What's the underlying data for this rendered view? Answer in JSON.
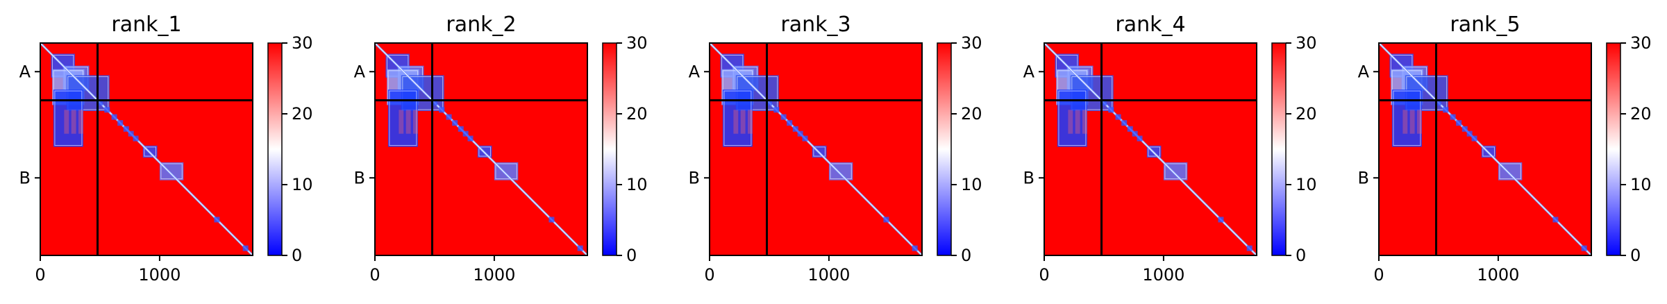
{
  "chart_data": [
    {
      "type": "heatmap",
      "title": "rank_1",
      "chains": [
        {
          "label": "A",
          "start": 0,
          "end": 480
        },
        {
          "label": "B",
          "start": 480,
          "end": 1780
        }
      ],
      "x_ticks": [
        0,
        1000
      ],
      "xlim": [
        0,
        1780
      ],
      "colorbar": {
        "min": 0,
        "max": 30,
        "ticks": [
          0,
          10,
          20,
          30
        ],
        "colormap": "bwr"
      },
      "low_error_blocks": [
        [
          90,
          90,
          200,
          200
        ],
        [
          190,
          190,
          220,
          210
        ],
        [
          100,
          220,
          270,
          300
        ],
        [
          220,
          270,
          360,
          300
        ],
        [
          110,
          390,
          250,
          480
        ],
        [
          860,
          860,
          120,
          100
        ],
        [
          1000,
          1000,
          200,
          150
        ]
      ],
      "diagonal_features": [
        500,
        560,
        620,
        670,
        720,
        760,
        800,
        1480,
        1720
      ]
    },
    {
      "type": "heatmap",
      "title": "rank_2",
      "chains": [
        {
          "label": "A",
          "start": 0,
          "end": 480
        },
        {
          "label": "B",
          "start": 480,
          "end": 1780
        }
      ],
      "x_ticks": [
        0,
        1000
      ],
      "xlim": [
        0,
        1780
      ],
      "colorbar": {
        "min": 0,
        "max": 30,
        "ticks": [
          0,
          10,
          20,
          30
        ],
        "colormap": "bwr"
      },
      "low_error_blocks": [
        [
          90,
          90,
          200,
          200
        ],
        [
          190,
          190,
          220,
          210
        ],
        [
          100,
          220,
          270,
          300
        ],
        [
          220,
          270,
          360,
          300
        ],
        [
          110,
          390,
          250,
          480
        ],
        [
          860,
          860,
          120,
          100
        ],
        [
          1000,
          1000,
          200,
          150
        ]
      ],
      "diagonal_features": [
        500,
        560,
        620,
        670,
        720,
        760,
        800,
        1480,
        1720
      ]
    },
    {
      "type": "heatmap",
      "title": "rank_3",
      "chains": [
        {
          "label": "A",
          "start": 0,
          "end": 480
        },
        {
          "label": "B",
          "start": 480,
          "end": 1780
        }
      ],
      "x_ticks": [
        0,
        1000
      ],
      "xlim": [
        0,
        1780
      ],
      "colorbar": {
        "min": 0,
        "max": 30,
        "ticks": [
          0,
          10,
          20,
          30
        ],
        "colormap": "bwr"
      },
      "low_error_blocks": [
        [
          90,
          90,
          200,
          200
        ],
        [
          190,
          190,
          220,
          210
        ],
        [
          100,
          220,
          270,
          300
        ],
        [
          220,
          270,
          360,
          300
        ],
        [
          110,
          390,
          250,
          480
        ],
        [
          860,
          860,
          120,
          100
        ],
        [
          1000,
          1000,
          200,
          150
        ]
      ],
      "diagonal_features": [
        500,
        560,
        620,
        670,
        720,
        760,
        800,
        1480,
        1720
      ]
    },
    {
      "type": "heatmap",
      "title": "rank_4",
      "chains": [
        {
          "label": "A",
          "start": 0,
          "end": 480
        },
        {
          "label": "B",
          "start": 480,
          "end": 1780
        }
      ],
      "x_ticks": [
        0,
        1000
      ],
      "xlim": [
        0,
        1780
      ],
      "colorbar": {
        "min": 0,
        "max": 30,
        "ticks": [
          0,
          10,
          20,
          30
        ],
        "colormap": "bwr"
      },
      "low_error_blocks": [
        [
          90,
          90,
          200,
          200
        ],
        [
          190,
          190,
          220,
          210
        ],
        [
          100,
          220,
          270,
          300
        ],
        [
          220,
          270,
          360,
          300
        ],
        [
          110,
          390,
          250,
          480
        ],
        [
          860,
          860,
          120,
          100
        ],
        [
          1000,
          1000,
          200,
          150
        ]
      ],
      "diagonal_features": [
        500,
        560,
        620,
        670,
        720,
        760,
        800,
        1480,
        1720
      ]
    },
    {
      "type": "heatmap",
      "title": "rank_5",
      "chains": [
        {
          "label": "A",
          "start": 0,
          "end": 480
        },
        {
          "label": "B",
          "start": 480,
          "end": 1780
        }
      ],
      "x_ticks": [
        0,
        1000
      ],
      "xlim": [
        0,
        1780
      ],
      "colorbar": {
        "min": 0,
        "max": 30,
        "ticks": [
          0,
          10,
          20,
          30
        ],
        "colormap": "bwr"
      },
      "low_error_blocks": [
        [
          90,
          90,
          200,
          200
        ],
        [
          190,
          190,
          220,
          210
        ],
        [
          100,
          220,
          270,
          300
        ],
        [
          220,
          270,
          360,
          300
        ],
        [
          110,
          390,
          250,
          480
        ],
        [
          860,
          860,
          120,
          100
        ],
        [
          1000,
          1000,
          200,
          150
        ]
      ],
      "diagonal_features": [
        500,
        560,
        620,
        670,
        720,
        760,
        800,
        1480,
        1720
      ]
    }
  ],
  "colors": {
    "high": "#ff0000",
    "mid": "#ffffff",
    "low": "#0000ff",
    "boundary": "#000000"
  }
}
